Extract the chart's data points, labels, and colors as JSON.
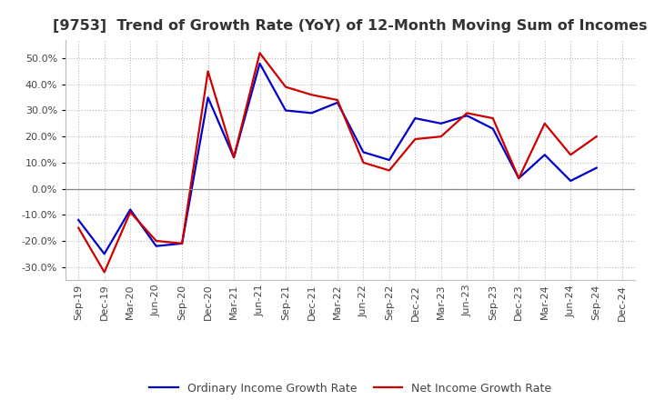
{
  "title": "[9753]  Trend of Growth Rate (YoY) of 12-Month Moving Sum of Incomes",
  "x_labels": [
    "Sep-19",
    "Dec-19",
    "Mar-20",
    "Jun-20",
    "Sep-20",
    "Dec-20",
    "Mar-21",
    "Jun-21",
    "Sep-21",
    "Dec-21",
    "Mar-22",
    "Jun-22",
    "Sep-22",
    "Dec-22",
    "Mar-23",
    "Jun-23",
    "Sep-23",
    "Dec-23",
    "Mar-24",
    "Jun-24",
    "Sep-24",
    "Dec-24"
  ],
  "ordinary_income": [
    -12,
    -25,
    -8,
    -22,
    -21,
    35,
    12,
    48,
    30,
    29,
    33,
    14,
    11,
    27,
    25,
    28,
    23,
    4,
    13,
    3,
    8,
    null
  ],
  "net_income": [
    -15,
    -32,
    -9,
    -20,
    -21,
    45,
    12,
    52,
    39,
    36,
    34,
    10,
    7,
    19,
    20,
    29,
    27,
    4,
    25,
    13,
    20,
    null
  ],
  "ordinary_color": "#0000CC",
  "net_color": "#CC0000",
  "ylim": [
    -35,
    57
  ],
  "yticks": [
    -30,
    -20,
    -10,
    0,
    10,
    20,
    30,
    40,
    50
  ],
  "background_color": "#FFFFFF",
  "plot_bg_color": "#FFFFFF",
  "grid_color": "#BBBBBB",
  "legend_ordinary": "Ordinary Income Growth Rate",
  "legend_net": "Net Income Growth Rate",
  "title_fontsize": 11.5,
  "tick_fontsize": 8,
  "legend_fontsize": 9,
  "line_width": 1.6,
  "title_color": "#333333"
}
